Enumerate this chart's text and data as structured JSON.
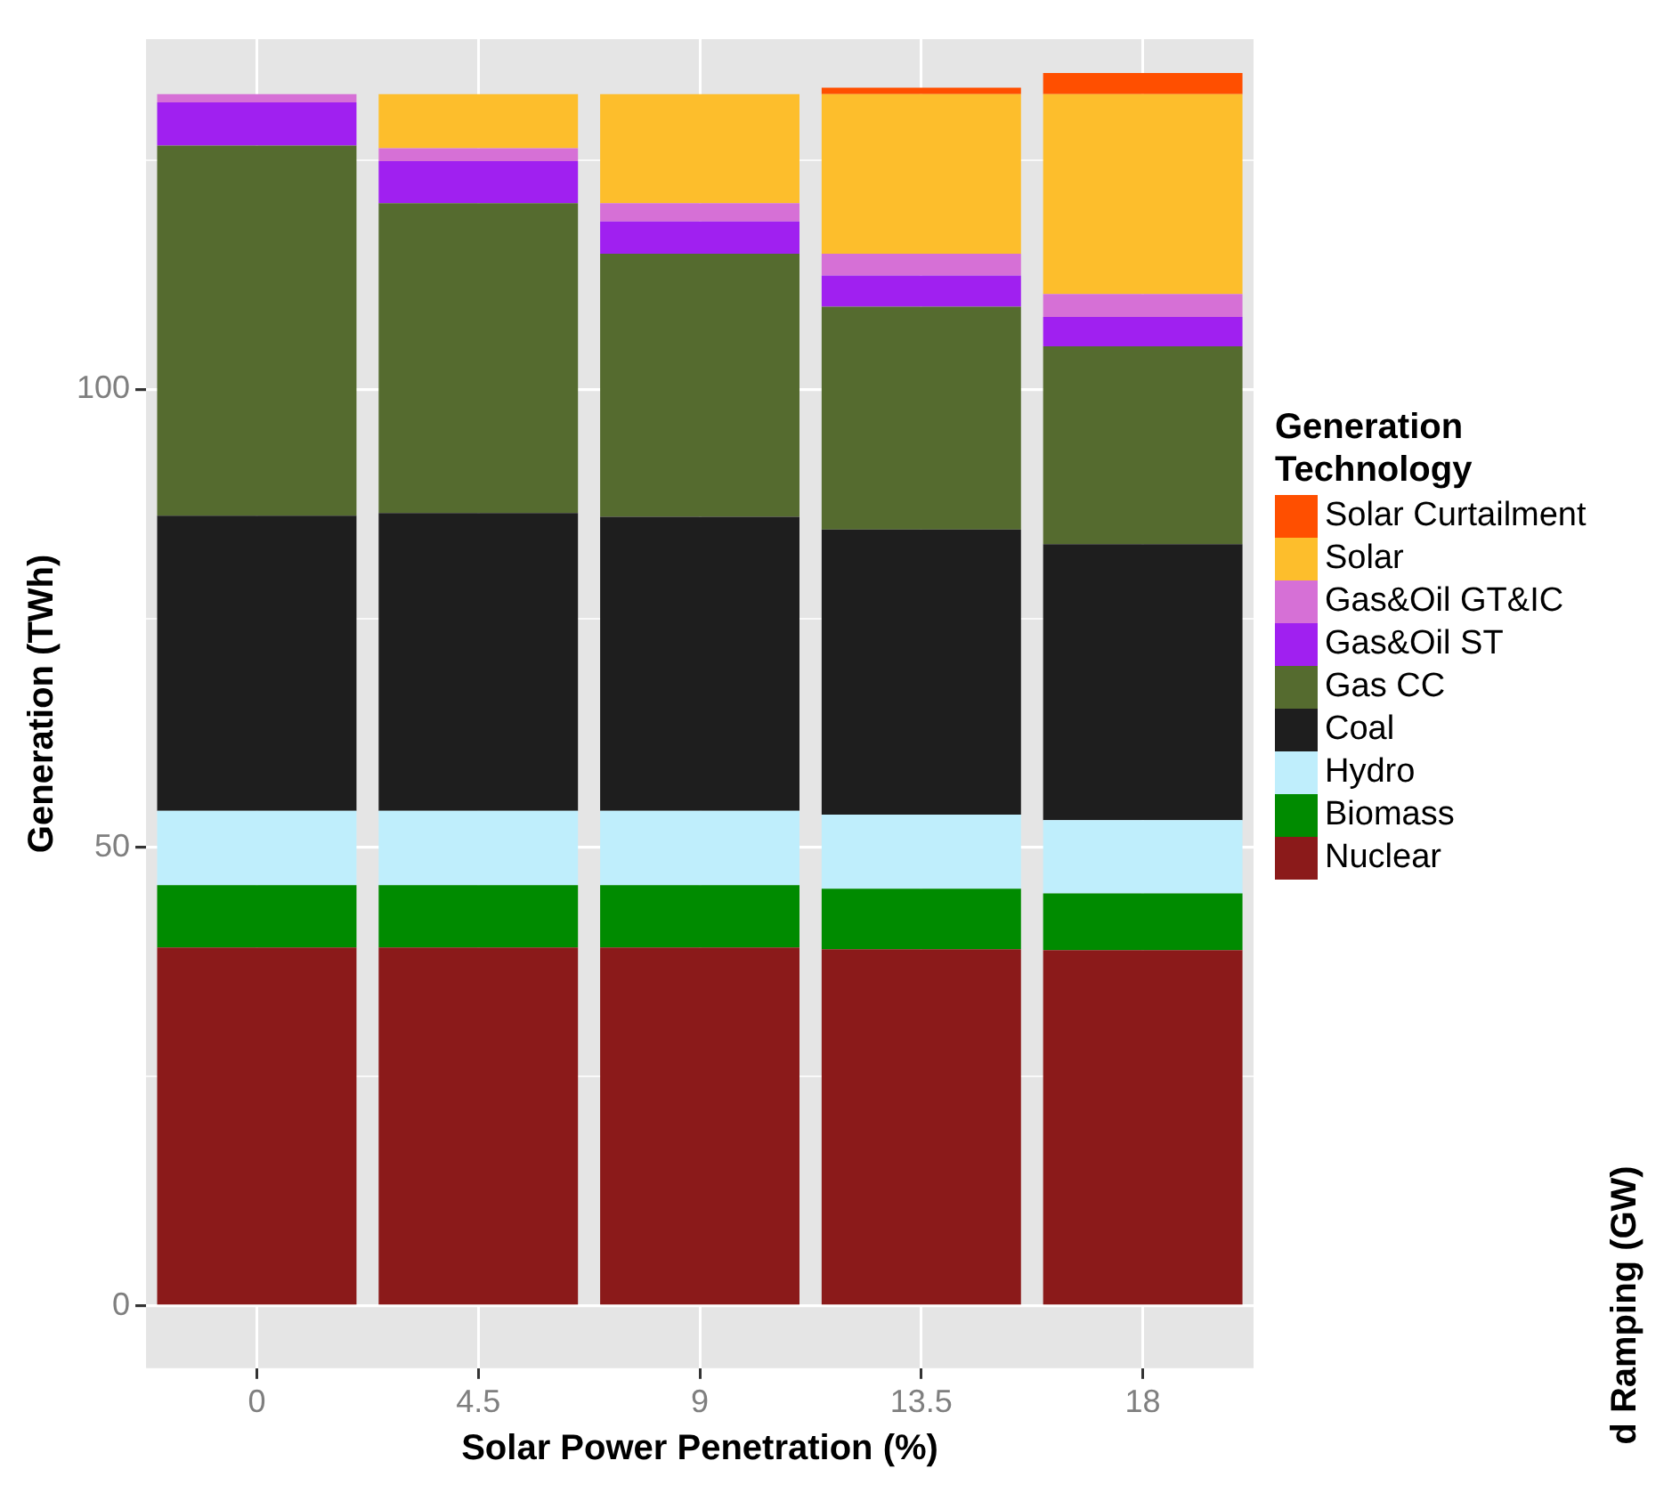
{
  "chart_data": {
    "type": "bar",
    "stacked": true,
    "xlabel": "Solar Power Penetration (%)",
    "ylabel": "Generation (TWh)",
    "legend_title": "Generation Technology",
    "legend": "right",
    "grid": true,
    "categories": [
      "0",
      "4.5",
      "9",
      "13.5",
      "18"
    ],
    "ylim": [
      -6.8,
      138.2
    ],
    "yticks": [
      0,
      {
        "value": 25,
        "label": null
      },
      50,
      {
        "value": 75,
        "label": null
      },
      100,
      {
        "value": 125,
        "label": null
      }
    ],
    "series": [
      {
        "name": "Nuclear",
        "color": "#8b1a1a",
        "values": [
          39.1,
          39.1,
          39.1,
          38.9,
          38.8
        ]
      },
      {
        "name": "Biomass",
        "color": "#008b00",
        "values": [
          6.8,
          6.8,
          6.8,
          6.6,
          6.2
        ]
      },
      {
        "name": "Hydro",
        "color": "#bfeefc",
        "values": [
          8.1,
          8.1,
          8.1,
          8.1,
          8.0
        ]
      },
      {
        "name": "Coal",
        "color": "#1e1e1e",
        "values": [
          32.2,
          32.5,
          32.1,
          31.1,
          30.1
        ]
      },
      {
        "name": "Gas CC",
        "color": "#556b2f",
        "values": [
          40.4,
          33.8,
          28.7,
          24.3,
          21.6
        ]
      },
      {
        "name": "Gas&Oil ST",
        "color": "#a020f0",
        "values": [
          4.7,
          4.6,
          3.5,
          3.4,
          3.2
        ]
      },
      {
        "name": "Gas&Oil GT&IC",
        "color": "#d670d6",
        "values": [
          0.9,
          1.4,
          2.0,
          2.4,
          2.5
        ]
      },
      {
        "name": "Solar",
        "color": "#fdbe2c",
        "values": [
          0,
          5.9,
          11.9,
          17.4,
          21.8
        ]
      },
      {
        "name": "Solar Curtailment",
        "color": "#ff4f00",
        "values": [
          0,
          0,
          0,
          0.7,
          2.3
        ]
      }
    ],
    "annotations": [
      "d Ramping (GW)"
    ]
  }
}
